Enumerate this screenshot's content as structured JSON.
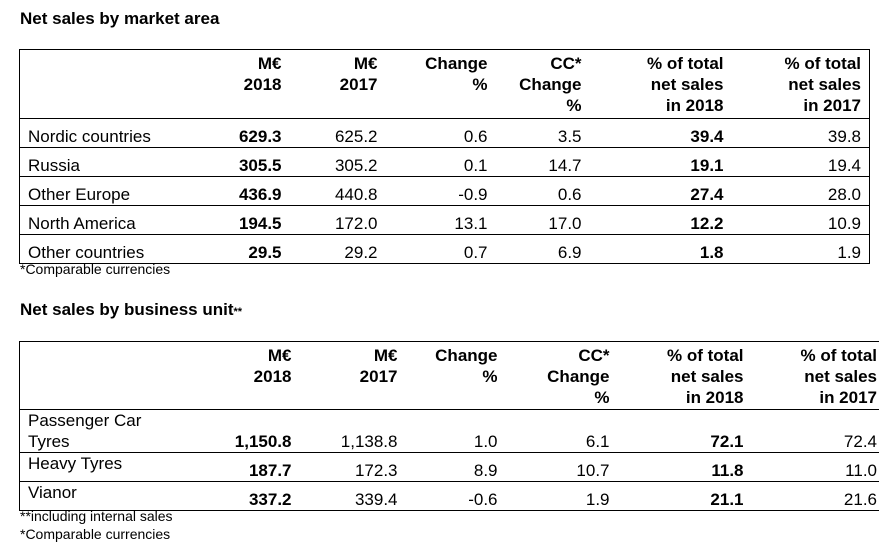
{
  "market": {
    "title": "Net sales by market area",
    "headers": [
      [
        "M€",
        "2018"
      ],
      [
        "M€",
        "2017"
      ],
      [
        "Change",
        "%"
      ],
      [
        "CC*",
        "Change",
        "%"
      ],
      [
        "% of total",
        "net sales",
        "in 2018"
      ],
      [
        "% of total",
        "net sales",
        "in 2017"
      ]
    ],
    "rows": [
      {
        "label": "Nordic countries",
        "v2018": "629.3",
        "v2017": "625.2",
        "change": "0.6",
        "cc": "3.5",
        "pct2018": "39.4",
        "pct2017": "39.8"
      },
      {
        "label": "Russia",
        "v2018": "305.5",
        "v2017": "305.2",
        "change": "0.1",
        "cc": "14.7",
        "pct2018": "19.1",
        "pct2017": "19.4"
      },
      {
        "label": "Other Europe",
        "v2018": "436.9",
        "v2017": "440.8",
        "change": "-0.9",
        "cc": "0.6",
        "pct2018": "27.4",
        "pct2017": "28.0"
      },
      {
        "label": "North America",
        "v2018": "194.5",
        "v2017": "172.0",
        "change": "13.1",
        "cc": "17.0",
        "pct2018": "12.2",
        "pct2017": "10.9"
      },
      {
        "label": "Other countries",
        "v2018": "29.5",
        "v2017": "29.2",
        "change": "0.7",
        "cc": "6.9",
        "pct2018": "1.8",
        "pct2017": "1.9"
      }
    ],
    "note": "*Comparable currencies"
  },
  "business": {
    "title": "Net sales by business unit",
    "title_sup": "**",
    "headers": [
      [
        "M€",
        "2018"
      ],
      [
        "M€",
        "2017"
      ],
      [
        "Change",
        "%"
      ],
      [
        "CC*",
        "Change",
        "%"
      ],
      [
        "% of total",
        "net sales",
        "in 2018"
      ],
      [
        "% of total",
        "net sales",
        "in 2017"
      ]
    ],
    "rows": [
      {
        "label_lines": [
          "Passenger Car",
          "Tyres"
        ],
        "v2018": "1,150.8",
        "v2017": "1,138.8",
        "change": "1.0",
        "cc": "6.1",
        "pct2018": "72.1",
        "pct2017": "72.4"
      },
      {
        "label": "Heavy Tyres",
        "v2018": "187.7",
        "v2017": "172.3",
        "change": "8.9",
        "cc": "10.7",
        "pct2018": "11.8",
        "pct2017": "11.0"
      },
      {
        "label": "Vianor",
        "v2018": "337.2",
        "v2017": "339.4",
        "change": "-0.6",
        "cc": "1.9",
        "pct2018": "21.1",
        "pct2017": "21.6"
      }
    ],
    "note_internal": "**including internal sales",
    "note": "*Comparable currencies"
  }
}
